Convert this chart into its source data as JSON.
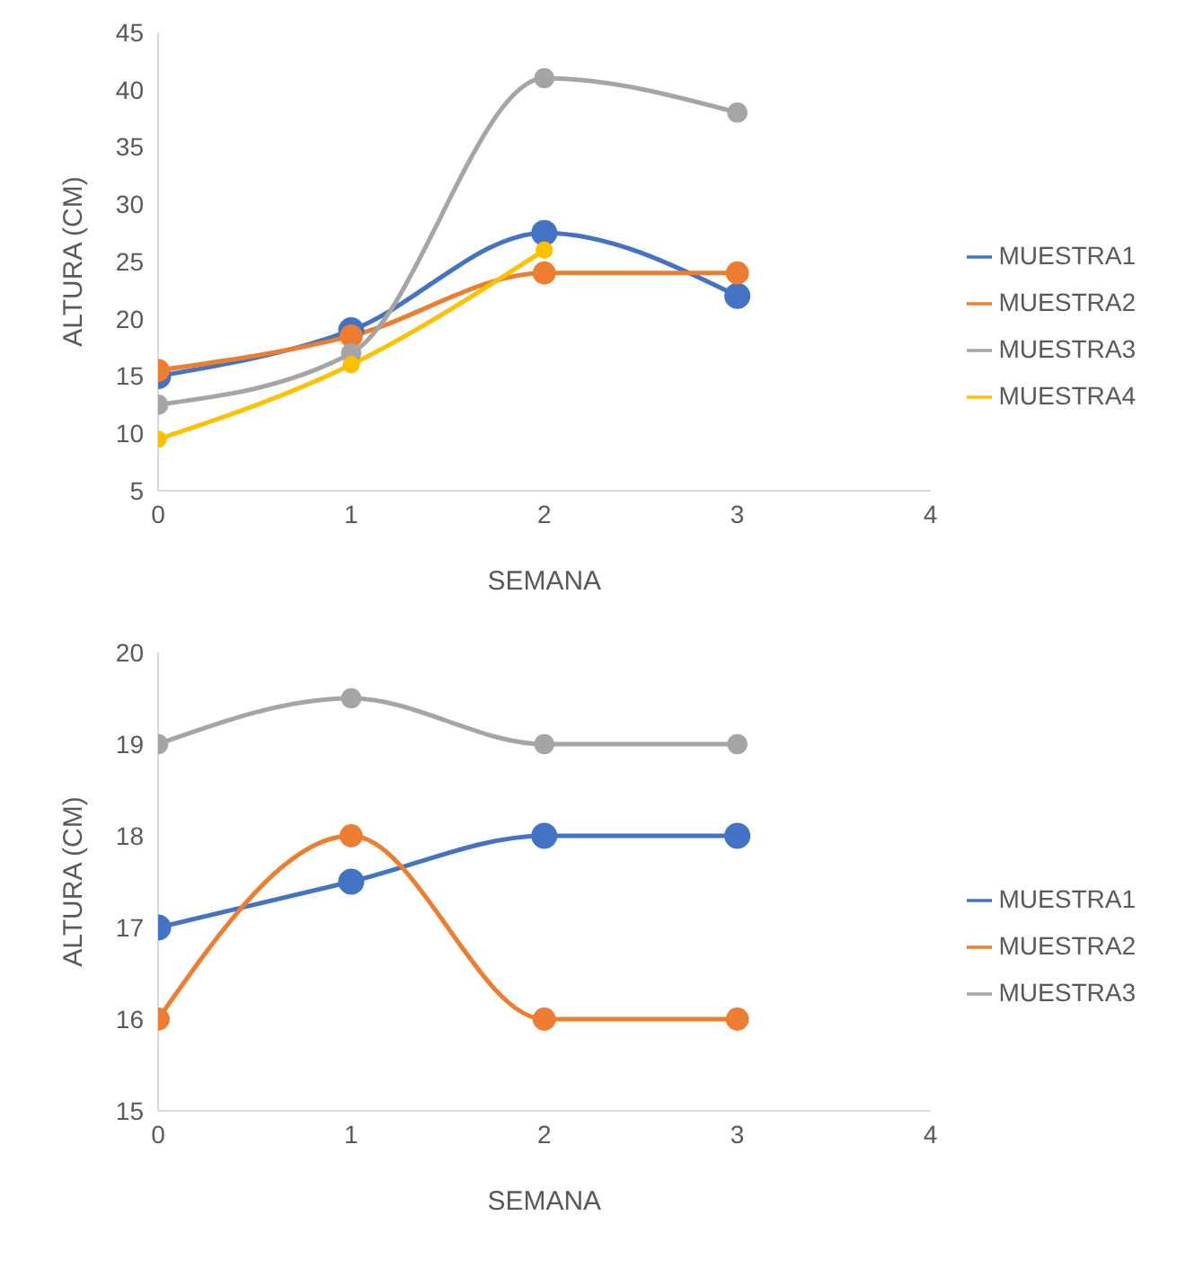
{
  "chart_data": [
    {
      "type": "line",
      "xlabel": "SEMANA",
      "ylabel": "ALTURA (CM)",
      "x": [
        0,
        1,
        2,
        3
      ],
      "xlim": [
        0,
        4
      ],
      "xticks": [
        0,
        1,
        2,
        3,
        4
      ],
      "ylim": [
        5,
        45
      ],
      "yticks": [
        5,
        10,
        15,
        20,
        25,
        30,
        35,
        40,
        45
      ],
      "grid": false,
      "legend": "right",
      "marker": "circle",
      "line_style": "solid",
      "series": [
        {
          "name": "MUESTRA1",
          "color": "#4472c4",
          "values": [
            15,
            19,
            27.5,
            22
          ]
        },
        {
          "name": "MUESTRA2",
          "color": "#ed7d31",
          "values": [
            15.5,
            18.5,
            24,
            24
          ]
        },
        {
          "name": "MUESTRA3",
          "color": "#a5a5a5",
          "values": [
            12.5,
            17,
            41,
            38
          ]
        },
        {
          "name": "MUESTRA4",
          "color": "#ffc000",
          "values": [
            9.5,
            16,
            26,
            null
          ]
        }
      ]
    },
    {
      "type": "line",
      "xlabel": "SEMANA",
      "ylabel": "ALTURA (CM)",
      "x": [
        0,
        1,
        2,
        3
      ],
      "xlim": [
        0,
        4
      ],
      "xticks": [
        0,
        1,
        2,
        3,
        4
      ],
      "ylim": [
        15,
        20
      ],
      "yticks": [
        15,
        16,
        17,
        18,
        19,
        20
      ],
      "grid": false,
      "legend": "right",
      "marker": "circle",
      "line_style": "solid",
      "series": [
        {
          "name": "MUESTRA1",
          "color": "#4472c4",
          "values": [
            17,
            17.5,
            18,
            18
          ]
        },
        {
          "name": "MUESTRA2",
          "color": "#ed7d31",
          "values": [
            16,
            18,
            16,
            16
          ]
        },
        {
          "name": "MUESTRA3",
          "color": "#a5a5a5",
          "values": [
            19,
            19.5,
            19,
            19
          ]
        }
      ]
    }
  ]
}
